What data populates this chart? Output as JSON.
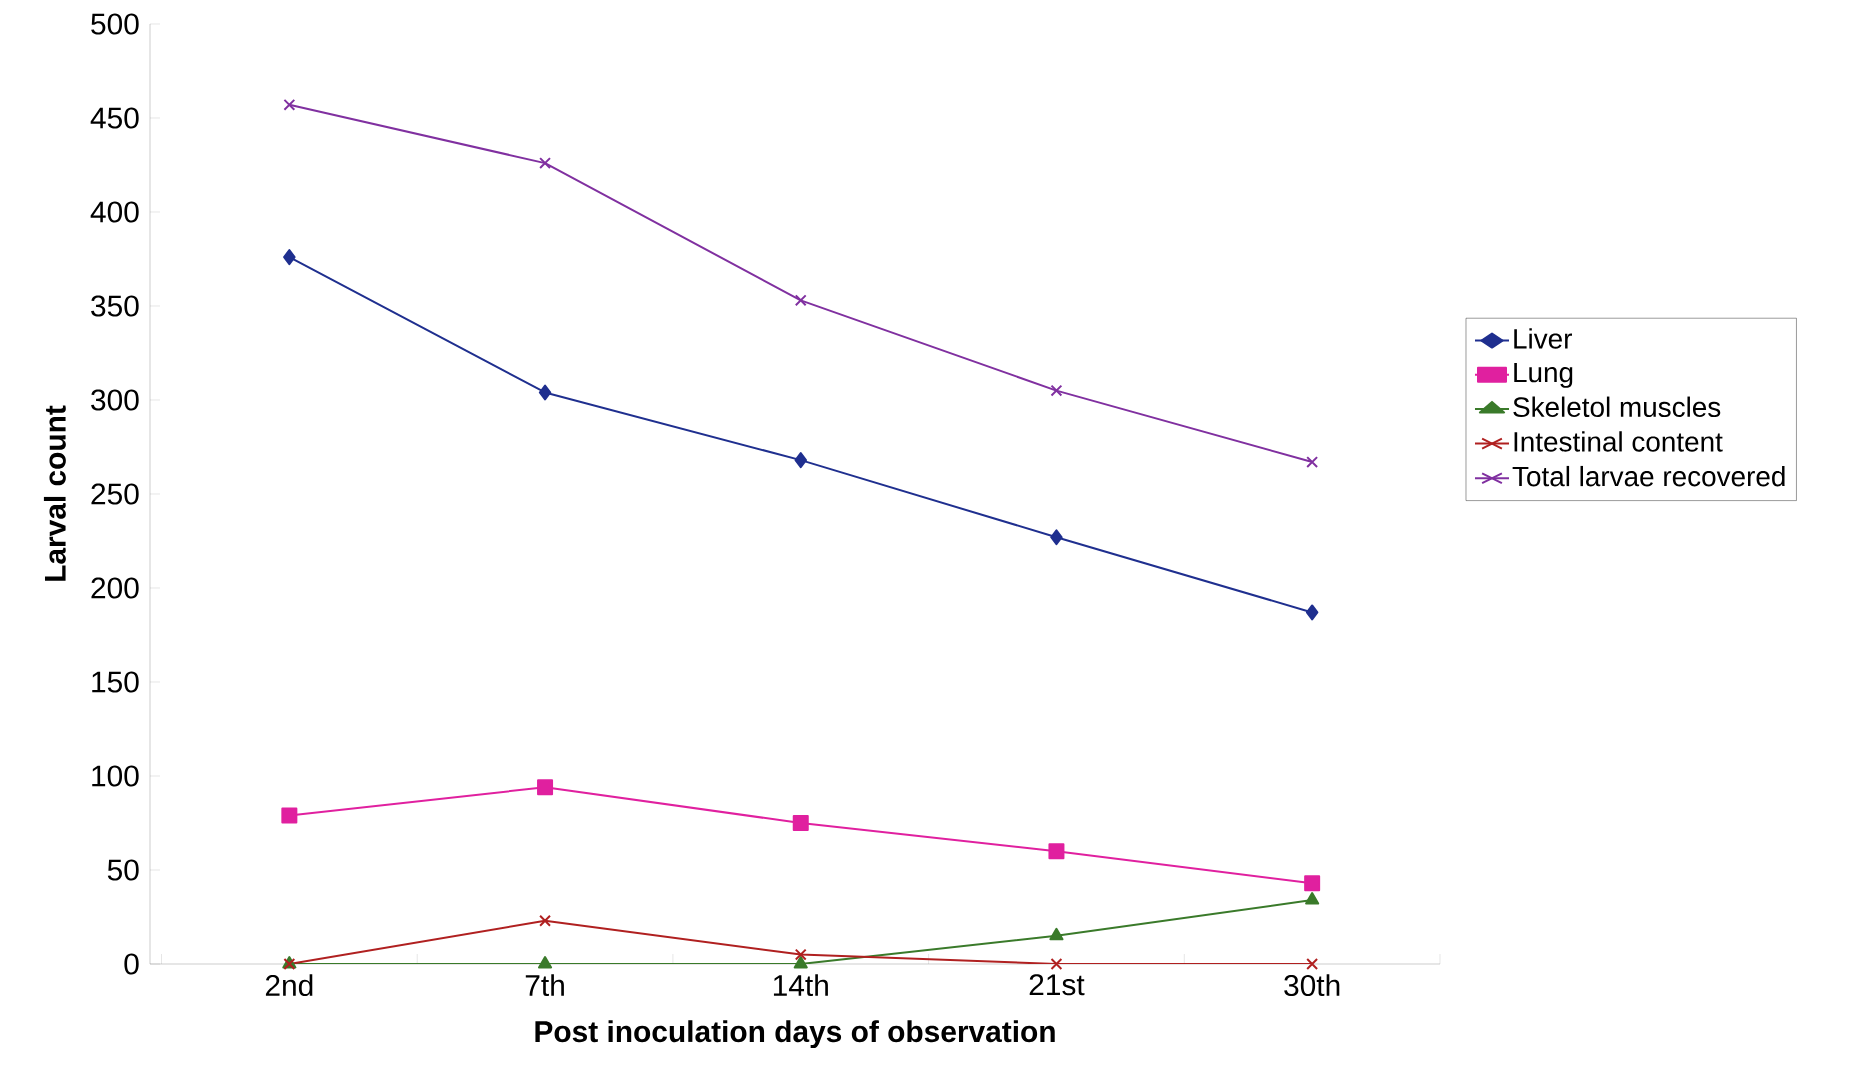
{
  "chart_data": {
    "type": "line",
    "xlabel": "Post inoculation days of observation",
    "ylabel": "Larval count",
    "categories": [
      "2nd",
      "7th",
      "14th",
      "21st",
      "30th"
    ],
    "ylim": [
      0,
      500
    ],
    "yticks": [
      0,
      50,
      100,
      150,
      200,
      250,
      300,
      350,
      400,
      450,
      500
    ],
    "grid": false,
    "legend": "right",
    "series": [
      {
        "name": "Liver",
        "color": "#1f2f8f",
        "marker": "diamond",
        "values": [
          376,
          304,
          268,
          227,
          187
        ]
      },
      {
        "name": "Lung",
        "color": "#e0209f",
        "marker": "square",
        "values": [
          79,
          94,
          75,
          60,
          43
        ]
      },
      {
        "name": "Skeletol muscles",
        "color": "#3a7a2a",
        "marker": "triangle",
        "values": [
          0,
          0,
          0,
          15,
          34
        ]
      },
      {
        "name": "Intestinal content",
        "color": "#b02020",
        "marker": "cross",
        "values": [
          0,
          23,
          5,
          0,
          0
        ]
      },
      {
        "name": "Total larvae recovered",
        "color": "#8030a0",
        "marker": "cross",
        "values": [
          457,
          426,
          353,
          305,
          267
        ]
      }
    ]
  }
}
